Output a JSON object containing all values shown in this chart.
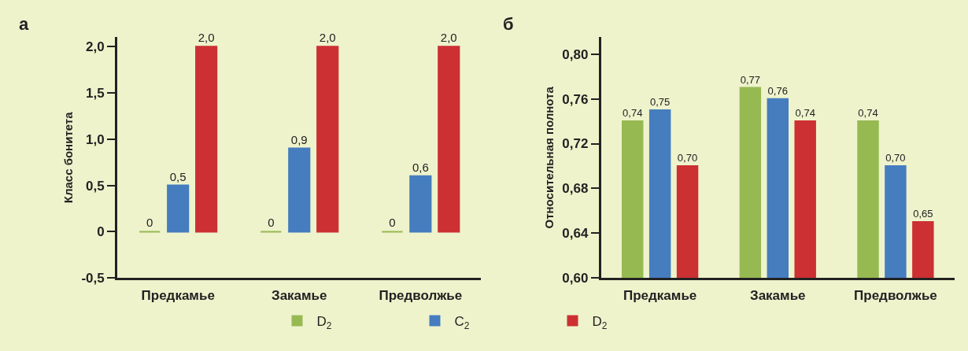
{
  "chart_data": [
    {
      "type": "bar",
      "title": "а",
      "ylabel": "Класс бонитета",
      "categories": [
        "Предкамье",
        "Закамье",
        "Предволжье"
      ],
      "series": [
        {
          "name": "D$_{2}$",
          "color": "#97b952",
          "values": [
            0,
            0,
            0
          ],
          "value_labels": [
            "0",
            "0",
            "0"
          ]
        },
        {
          "name": "C$_{2}$",
          "color": "#457dbf",
          "values": [
            0.5,
            0.9,
            0.6
          ],
          "value_labels": [
            "0,5",
            "0,9",
            "0,6"
          ]
        },
        {
          "name": "D$_{2}$",
          "color": "#cc3033",
          "values": [
            2.0,
            2.0,
            2.0
          ],
          "value_labels": [
            "2,0",
            "2,0",
            "2,0"
          ]
        }
      ],
      "ylim": [
        -0.5,
        2.1
      ],
      "yticks": [
        {
          "value": -0.5,
          "label": "-0,5"
        },
        0,
        {
          "value": 0.5,
          "label": "0,5"
        },
        {
          "value": 1.0,
          "label": "1,0"
        },
        {
          "value": 1.5,
          "label": "1,5"
        },
        {
          "value": 2.0,
          "label": "2,0"
        }
      ],
      "grid": false,
      "legend": "bottom"
    },
    {
      "type": "bar",
      "title": "б",
      "ylabel": "Относительная полнота",
      "categories": [
        "Предкамье",
        "Закамье",
        "Предволжье"
      ],
      "series": [
        {
          "color": "#97b952",
          "values": [
            0.74,
            0.77,
            0.74
          ],
          "value_labels": [
            "0,74",
            "0,77",
            "0,74"
          ]
        },
        {
          "color": "#457dbf",
          "values": [
            0.75,
            0.76,
            0.7
          ],
          "value_labels": [
            "0,75",
            "0,76",
            "0,70"
          ]
        },
        {
          "color": "#cc3033",
          "values": [
            0.7,
            0.74,
            0.65
          ],
          "value_labels": [
            "0,70",
            "0,74",
            "0,65"
          ]
        }
      ],
      "ylim": [
        0.6,
        0.815
      ],
      "yticks": [
        {
          "value": 0.6,
          "label": "0,60"
        },
        {
          "value": 0.64,
          "label": "0,64"
        },
        {
          "value": 0.68,
          "label": "0,68"
        },
        {
          "value": 0.72,
          "label": "0,72"
        },
        {
          "value": 0.76,
          "label": "0,76"
        },
        {
          "value": 0.8,
          "label": "0,80"
        }
      ],
      "grid": false
    }
  ]
}
